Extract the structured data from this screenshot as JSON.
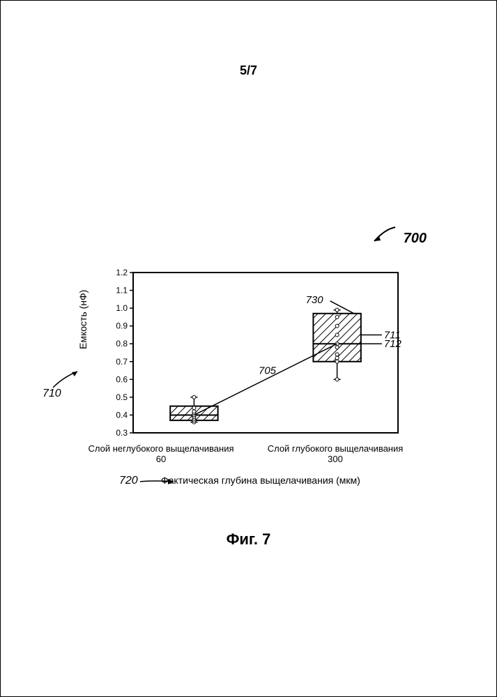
{
  "page_number": "5/7",
  "figure_ref": "700",
  "caption": "Фиг. 7",
  "y_axis": {
    "label": "Емкость (нФ)",
    "ref": "710",
    "min": 0.3,
    "max": 1.2,
    "ticks": [
      0.3,
      0.4,
      0.5,
      0.6,
      0.7,
      0.8,
      0.9,
      1.0,
      1.1,
      1.2
    ],
    "tick_labels": [
      "0.3",
      "0.4",
      "0.5",
      "0.6",
      "0.7",
      "0.8",
      "0.9",
      "1.0",
      "1.1",
      "1.2"
    ]
  },
  "x_axis": {
    "label": "Фактическая глубина выщелачивания (мкм)",
    "ref": "720",
    "categories": [
      {
        "label_top": "Слой неглубокого выщелачивания",
        "label_bottom": "60",
        "x": 0.23
      },
      {
        "label_top": "Слой глубокого выщелачивания",
        "label_bottom": "300",
        "x": 0.77
      }
    ]
  },
  "boxes": [
    {
      "x": 0.23,
      "q1": 0.37,
      "q3": 0.45,
      "median": 0.4,
      "whisker_lo": 0.36,
      "whisker_hi": 0.5,
      "points": [
        0.36,
        0.37,
        0.38,
        0.39,
        0.4,
        0.4,
        0.41,
        0.42,
        0.44,
        0.5
      ],
      "width": 0.18
    },
    {
      "x": 0.77,
      "q1": 0.7,
      "q3": 0.97,
      "median": 0.8,
      "whisker_lo": 0.6,
      "whisker_hi": 0.99,
      "points": [
        0.6,
        0.7,
        0.72,
        0.74,
        0.78,
        0.8,
        0.85,
        0.9,
        0.95,
        0.99
      ],
      "width": 0.18
    }
  ],
  "connector": {
    "from_box": 0,
    "to_box": 1,
    "ref": "705"
  },
  "callouts": [
    {
      "ref": "730",
      "target_box": 1,
      "y": 0.97,
      "side": "top"
    },
    {
      "ref": "711",
      "target_box": 1,
      "y": 0.85,
      "side": "right"
    },
    {
      "ref": "712",
      "target_box": 1,
      "y": 0.8,
      "side": "right"
    }
  ],
  "style": {
    "stroke": "#000000",
    "hatch_stroke": "#000000",
    "bg": "#ffffff",
    "line_width": 2,
    "box_line_width": 2,
    "point_radius": 2.5,
    "font_axis": 12
  }
}
